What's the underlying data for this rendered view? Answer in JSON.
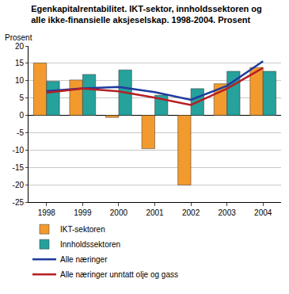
{
  "chart_data": {
    "type": "bar",
    "title": "Egenkapitalrentabilitet. IKT-sektor, innholdssektoren og alle ikke-finansielle aksjeselskap. 1998-2004. Prosent",
    "y_label": "Prosent",
    "categories": [
      "1998",
      "1999",
      "2000",
      "2001",
      "2002",
      "2003",
      "2004"
    ],
    "series": [
      {
        "name": "IKT-sektoren",
        "type": "bar",
        "color": "#f39a2e",
        "values": [
          15.1,
          10.2,
          -0.6,
          -9.6,
          -20.1,
          9.1,
          13.8
        ]
      },
      {
        "name": "Innholdssektoren",
        "type": "bar",
        "color": "#26a19b",
        "values": [
          9.8,
          11.8,
          13.1,
          5.8,
          7.7,
          12.7,
          12.7
        ]
      },
      {
        "name": "Alle næringer",
        "type": "line",
        "color": "#1f3a9e",
        "values": [
          7.0,
          7.8,
          8.2,
          6.7,
          4.5,
          8.5,
          15.6
        ]
      },
      {
        "name": "Alle næringer unntatt olje og gass",
        "type": "line",
        "color": "#b51f24",
        "values": [
          6.5,
          7.7,
          6.9,
          5.1,
          3.0,
          7.7,
          13.7
        ]
      }
    ],
    "ylim": [
      -25,
      20
    ],
    "yticks": [
      -25,
      -20,
      -15,
      -10,
      -5,
      0,
      5,
      10,
      15,
      20
    ],
    "grid": true,
    "legend": "bottom"
  }
}
